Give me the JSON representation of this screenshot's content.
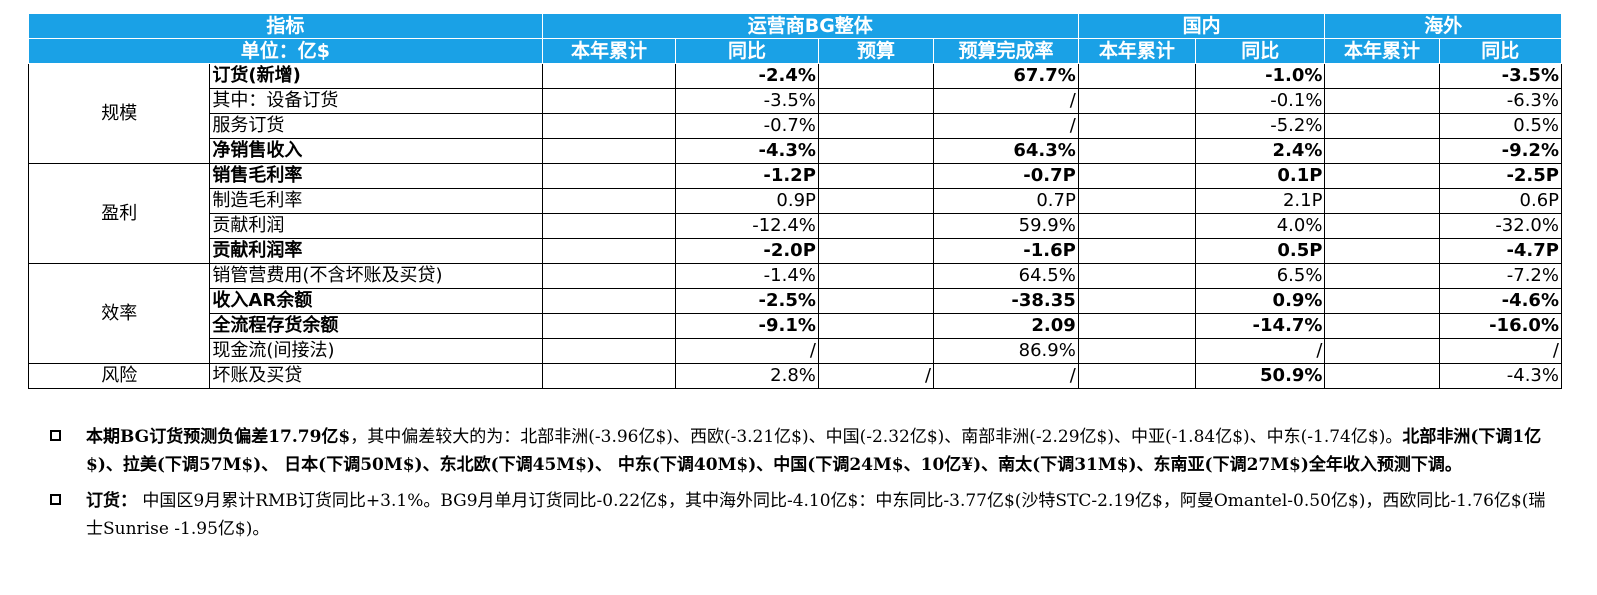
{
  "table": {
    "header": {
      "indicator": "指标",
      "unit": "单位：亿$",
      "groups": {
        "bg": "运营商BG整体",
        "domestic": "国内",
        "overseas": "海外"
      },
      "cols": [
        "本年累计",
        "同比",
        "预算",
        "预算完成率",
        "本年累计",
        "同比",
        "本年累计",
        "同比"
      ]
    },
    "categories": {
      "scale": "规模",
      "profit": "盈利",
      "efficiency": "效率",
      "risk": "风险"
    },
    "rows": [
      {
        "metric": "订货(新增)",
        "v": [
          "",
          "-2.4%",
          "",
          "67.7%",
          "",
          "-1.0%",
          "",
          "-3.5%"
        ]
      },
      {
        "metric": "其中：设备订货",
        "v": [
          "",
          "-3.5%",
          "",
          "/",
          "",
          "-0.1%",
          "",
          "-6.3%"
        ]
      },
      {
        "metric": "服务订货",
        "v": [
          "",
          "-0.7%",
          "",
          "/",
          "",
          "-5.2%",
          "",
          "0.5%"
        ]
      },
      {
        "metric": "净销售收入",
        "v": [
          "",
          "-4.3%",
          "",
          "64.3%",
          "",
          "2.4%",
          "",
          "-9.2%"
        ]
      },
      {
        "metric": "销售毛利率",
        "v": [
          "",
          "-1.2P",
          "",
          "-0.7P",
          "",
          "0.1P",
          "",
          "-2.5P"
        ]
      },
      {
        "metric": "制造毛利率",
        "v": [
          "",
          "0.9P",
          "",
          "0.7P",
          "",
          "2.1P",
          "",
          "0.6P"
        ]
      },
      {
        "metric": "贡献利润",
        "v": [
          "",
          "-12.4%",
          "",
          "59.9%",
          "",
          "4.0%",
          "",
          "-32.0%"
        ]
      },
      {
        "metric": "贡献利润率",
        "v": [
          "",
          "-2.0P",
          "",
          "-1.6P",
          "",
          "0.5P",
          "",
          "-4.7P"
        ]
      },
      {
        "metric": "销管营费用(不含坏账及买贷)",
        "v": [
          "",
          "-1.4%",
          "",
          "64.5%",
          "",
          "6.5%",
          "",
          "-7.2%"
        ]
      },
      {
        "metric": "收入AR余额",
        "v": [
          "",
          "-2.5%",
          "",
          "-38.35",
          "",
          "0.9%",
          "",
          "-4.6%"
        ]
      },
      {
        "metric": "全流程存货余额",
        "v": [
          "",
          "-9.1%",
          "",
          "2.09",
          "",
          "-14.7%",
          "",
          "-16.0%"
        ]
      },
      {
        "metric": "现金流(间接法)",
        "v": [
          "",
          "/",
          "",
          "86.9%",
          "",
          "/",
          "",
          "/"
        ]
      },
      {
        "metric": "坏账及买贷",
        "v": [
          "",
          "2.8%",
          "/",
          "/",
          "",
          "50.9%",
          "",
          "-4.3%"
        ]
      }
    ]
  },
  "notes": {
    "n1": {
      "bold1": "本期BG订货预测负偏差17.79亿$",
      "text1": "，其中偏差较大的为：北部非洲(-3.96亿$)、西欧(-3.21亿$)、中国(-2.32亿$)、南部非洲(-2.29亿$)、中亚(-1.84亿$)、中东(-1.74亿$)。",
      "bold2": "北部非洲(下调1亿$)、拉美(下调57M$)、 日本(下调50M$)、东北欧(下调45M$)、 中东(下调40M$)、中国(下调24M$、10亿¥)、南太(下调31M$)、东南亚(下调27M$)全年收入预测下调。"
    },
    "n2": {
      "bold1": "订货：",
      "text1": "  中国区9月累计RMB订货同比+3.1%。BG9月单月订货同比-0.22亿$，其中海外同比-4.10亿$：中东同比-3.77亿$(沙特STC-2.19亿$，阿曼Omantel-0.50亿$)，西欧同比-1.76亿$(瑞士Sunrise -1.95亿$)。"
    }
  }
}
